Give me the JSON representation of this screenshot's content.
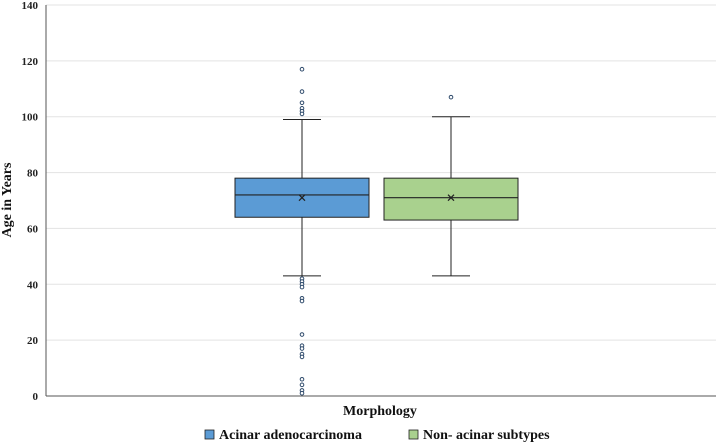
{
  "chart_data": {
    "type": "box",
    "title": "",
    "xlabel": "Morphology",
    "ylabel": "Age in Years",
    "ylim": [
      0,
      140
    ],
    "yticks": [
      0,
      20,
      40,
      60,
      80,
      100,
      120,
      140
    ],
    "grid": true,
    "legend_position": "bottom",
    "series": [
      {
        "name": "Acinar adenocarcinoma",
        "color": "#5b9bd5",
        "whisker_low": 43,
        "q1": 64,
        "median": 72,
        "q3": 78,
        "whisker_high": 99,
        "mean": 71,
        "outliers": [
          117,
          109,
          105,
          103,
          102,
          101,
          42,
          41,
          40,
          39,
          35,
          34,
          22,
          18,
          17,
          15,
          14,
          6,
          4,
          2,
          1
        ]
      },
      {
        "name": "Non- acinar subtypes",
        "color": "#a9d18e",
        "whisker_low": 43,
        "q1": 63,
        "median": 71,
        "q3": 78,
        "whisker_high": 100,
        "mean": 71,
        "outliers": [
          107
        ]
      }
    ]
  }
}
